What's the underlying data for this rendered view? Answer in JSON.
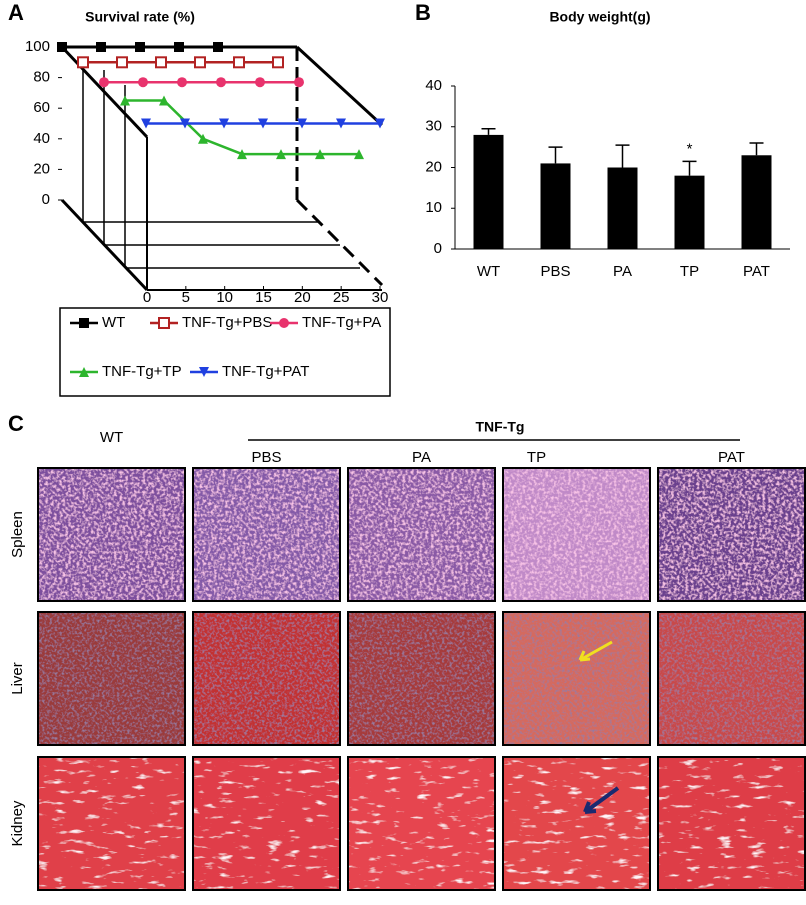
{
  "chart_data": [
    {
      "type": "line",
      "panel": "A",
      "title": "Survival rate (%)",
      "x": [
        0,
        5,
        10,
        15,
        20,
        25,
        30
      ],
      "xlim": [
        0,
        30
      ],
      "xticks": [
        0,
        5,
        10,
        15,
        20,
        25,
        30
      ],
      "ylim": [
        0,
        100
      ],
      "yticks": [
        0,
        20,
        40,
        60,
        80,
        100
      ],
      "series": [
        {
          "name": "WT",
          "color": "#000000",
          "marker": "square",
          "values": [
            100,
            100,
            100,
            100,
            100,
            null,
            null
          ]
        },
        {
          "name": "TNF-Tg+PBS",
          "color": "#b22222",
          "marker": "open-square",
          "values": [
            90,
            90,
            90,
            90,
            90,
            90,
            null
          ]
        },
        {
          "name": "TNF-Tg+PA",
          "color": "#e8336d",
          "marker": "circle",
          "values": [
            77,
            77,
            77,
            77,
            77,
            77,
            null
          ]
        },
        {
          "name": "TNF-Tg+TP",
          "color": "#2db52d",
          "marker": "triangle",
          "values": [
            65,
            65,
            40,
            30,
            30,
            30,
            30
          ]
        },
        {
          "name": "TNF-Tg+PAT",
          "color": "#2040e0",
          "marker": "triangle-down",
          "values": [
            50,
            50,
            50,
            50,
            50,
            50,
            50
          ]
        }
      ]
    },
    {
      "type": "bar",
      "panel": "B",
      "title": "Body weight(g)",
      "categories": [
        "WT",
        "PBS",
        "PA",
        "TP",
        "PAT"
      ],
      "values": [
        28,
        21,
        20,
        18,
        23
      ],
      "errors": [
        1.5,
        4,
        5.5,
        3.5,
        3
      ],
      "color": "#000000",
      "ylim": [
        0,
        40
      ],
      "yticks": [
        0,
        10,
        20,
        30,
        40
      ],
      "annotations": [
        {
          "text": "*",
          "category": "TP"
        }
      ]
    }
  ],
  "panel_c": {
    "panel": "C",
    "group_label": "TNF-Tg",
    "columns": [
      "WT",
      "PBS",
      "PA",
      "TP",
      "PAT"
    ],
    "rows": [
      "Spleen",
      "Liver",
      "Kidney"
    ]
  }
}
